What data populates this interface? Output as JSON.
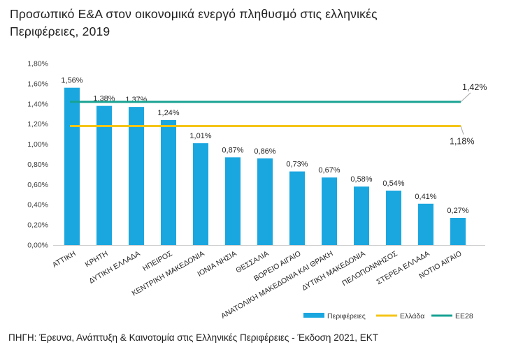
{
  "title_line1": "Προσωπικό Ε&Α στον οικονομικά ενεργό πληθυσμό στις ελληνικές",
  "title_line2": "Περιφέρειες, 2019",
  "source": "ΠΗΓΗ: Έρευνα, Ανάπτυξη & Καινοτομία στις Ελληνικές Περιφέρειες - Έκδοση 2021, ΕΚΤ",
  "chart_data": {
    "type": "bar",
    "title": "Προσωπικό Ε&Α στον οικονομικά ενεργό πληθυσμό στις ελληνικές Περιφέρειες, 2019",
    "categories": [
      "ΑΤΤΙΚΗ",
      "ΚΡΗΤΗ",
      "ΔΥΤΙΚΗ ΕΛΛΑΔΑ",
      "ΗΠΕΙΡΟΣ",
      "ΚΕΝΤΡΙΚΗ ΜΑΚΕΔΟΝΙΑ",
      "ΙΟΝΙΑ ΝΗΣΙΑ",
      "ΘΕΣΣΑΛΙΑ",
      "ΒΟΡΕΙΟ ΑΙΓΑΙΟ",
      "ΑΝΑΤΟΛΙΚΗ ΜΑΚΕΔΟΝΙΑ ΚΑΙ ΘΡΑΚΗ",
      "ΔΥΤΙΚΗ ΜΑΚΕΔΟΝΙΑ",
      "ΠΕΛΟΠΟΝΝΗΣΟΣ",
      "ΣΤΕΡΕΑ ΕΛΛΑΔΑ",
      "ΝΟΤΙΟ ΑΙΓΑΙΟ"
    ],
    "series": [
      {
        "name": "Περιφέρειες",
        "type": "bar",
        "color": "#1aa7e0",
        "values": [
          1.56,
          1.38,
          1.37,
          1.24,
          1.01,
          0.87,
          0.86,
          0.73,
          0.67,
          0.58,
          0.54,
          0.41,
          0.27
        ],
        "labels": [
          "1,56%",
          "1,38%",
          "1,37%",
          "1,24%",
          "1,01%",
          "0,87%",
          "0,86%",
          "0,73%",
          "0,67%",
          "0,58%",
          "0,54%",
          "0,41%",
          "0,27%"
        ]
      },
      {
        "name": "Ελλάδα",
        "type": "line",
        "color": "#f5c518",
        "value": 1.18,
        "label": "1,18%"
      },
      {
        "name": "ΕΕ28",
        "type": "line",
        "color": "#17a293",
        "value": 1.42,
        "label": "1,42%"
      }
    ],
    "ylim": [
      0,
      1.8
    ],
    "yticks": [
      0,
      0.2,
      0.4,
      0.6,
      0.8,
      1.0,
      1.2,
      1.4,
      1.6,
      1.8
    ],
    "ytick_labels": [
      "0,00%",
      "0,20%",
      "0,40%",
      "0,60%",
      "0,80%",
      "1,00%",
      "1,20%",
      "1,40%",
      "1,60%",
      "1,80%"
    ],
    "xlabel": "",
    "ylabel": "",
    "grid": false,
    "legend": "bottom-right"
  }
}
